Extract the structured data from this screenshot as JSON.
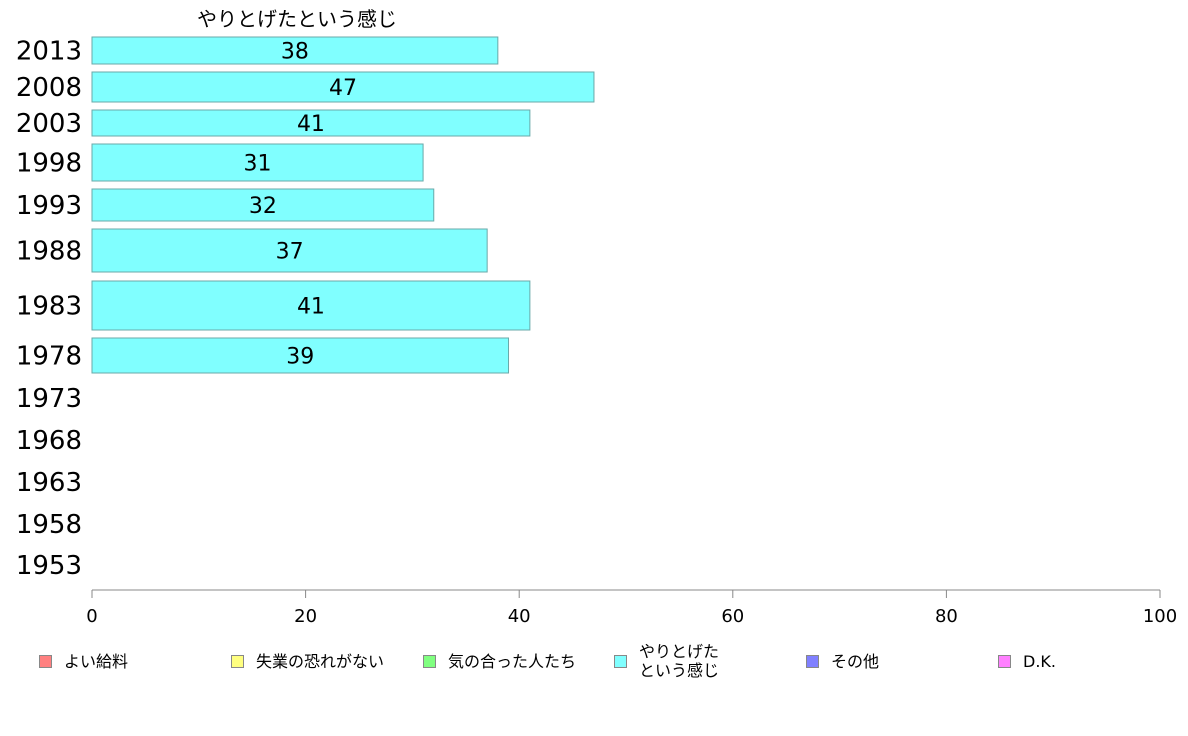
{
  "chart_data": {
    "type": "bar",
    "orientation": "horizontal",
    "title": "やりとげたという感じ",
    "categories": [
      "2013",
      "2008",
      "2003",
      "1998",
      "1993",
      "1988",
      "1983",
      "1978",
      "1973",
      "1968",
      "1963",
      "1958",
      "1953"
    ],
    "series": [
      {
        "name": "やりとげたという感じ",
        "values": [
          38,
          47,
          41,
          31,
          32,
          37,
          41,
          39,
          null,
          null,
          null,
          null,
          null
        ]
      }
    ],
    "xlim": [
      0,
      100
    ],
    "xticks": [
      "0",
      "20",
      "40",
      "60",
      "80",
      "100"
    ],
    "grid": false,
    "legend_position": "bottom",
    "bar_color": "#80ffff"
  },
  "legend": [
    {
      "label": "よい給料",
      "color": "#ff8080"
    },
    {
      "label": "失業の恐れがない",
      "color": "#ffff80"
    },
    {
      "label": "気の合った人たち",
      "color": "#80ff80"
    },
    {
      "label": "やりとげた\nという感じ",
      "color": "#80ffff"
    },
    {
      "label": "その他",
      "color": "#8080ff"
    },
    {
      "label": "D.K.",
      "color": "#ff80ff"
    }
  ]
}
